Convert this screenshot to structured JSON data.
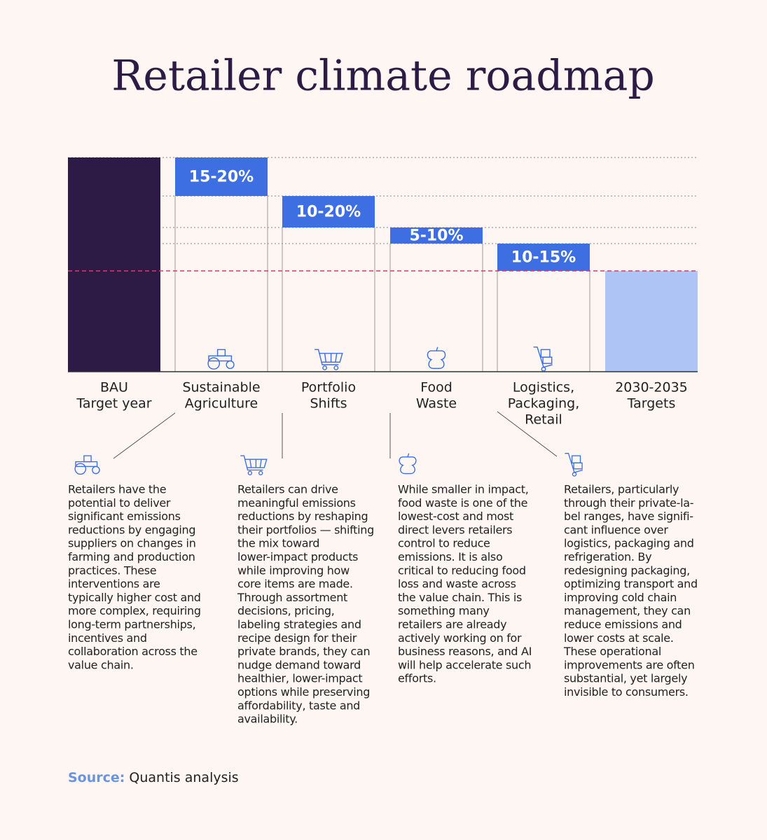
{
  "title": "Retailer climate roadmap",
  "columns": [
    {
      "label_lines": [
        "BAU",
        "Target year"
      ]
    },
    {
      "label_lines": [
        "Sustainable",
        "Agriculture"
      ],
      "step": "15-20%"
    },
    {
      "label_lines": [
        "Portfolio",
        "Shifts"
      ],
      "step": "10-20%"
    },
    {
      "label_lines": [
        "Food",
        "Waste"
      ],
      "step": "5-10%"
    },
    {
      "label_lines": [
        "Logistics,",
        "Packaging,",
        "Retail"
      ],
      "step": "10-15%"
    },
    {
      "label_lines": [
        "2030-2035",
        "Targets"
      ]
    }
  ],
  "details": [
    {
      "lines": [
        "Retailers have the",
        "potential to deliver",
        "significant emissions",
        "reductions by engaging",
        "suppliers on changes in",
        "farming and production",
        "practices. These",
        "interventions are",
        "typically higher cost and",
        "more complex, requiring",
        "long-term partnerships,",
        "incentives and",
        "collaboration across the",
        "value chain."
      ]
    },
    {
      "lines": [
        "Retailers can drive",
        "meaningful emissions",
        "reductions by reshaping",
        "their portfolios — shifting",
        "the mix toward",
        "lower-impact products",
        "while improving how",
        "core items are made.",
        "Through assortment",
        "decisions, pricing,",
        "labeling strategies and",
        "recipe design for their",
        "private brands, they can",
        "nudge demand toward",
        "healthier, lower-impact",
        "options while preserving",
        "affordability, taste and",
        "availability."
      ]
    },
    {
      "lines": [
        "While smaller in impact,",
        "food waste is one of the",
        "lowest-cost and most",
        "direct levers retailers",
        "control to reduce",
        "emissions. It is also",
        "critical to reducing food",
        "loss and waste across",
        "the value chain. This is",
        "something many",
        "retailers are already",
        "actively working on for",
        "business reasons, and AI",
        "will help accelerate such",
        "efforts."
      ]
    },
    {
      "lines": [
        "Retailers, particularly",
        "through their private-la-",
        "bel ranges, have signifi-",
        "cant influence over",
        "logistics, packaging and",
        "refrigeration. By",
        "redesigning packaging,",
        "optimizing transport and",
        "improving cold chain",
        "management, they can",
        "reduce emissions and",
        "lower costs at scale.",
        "These operational",
        "improvements are often",
        "substantial, yet largely",
        "invisible to consumers."
      ]
    }
  ],
  "source": {
    "label": "Source:",
    "text": "Quantis analysis"
  }
}
